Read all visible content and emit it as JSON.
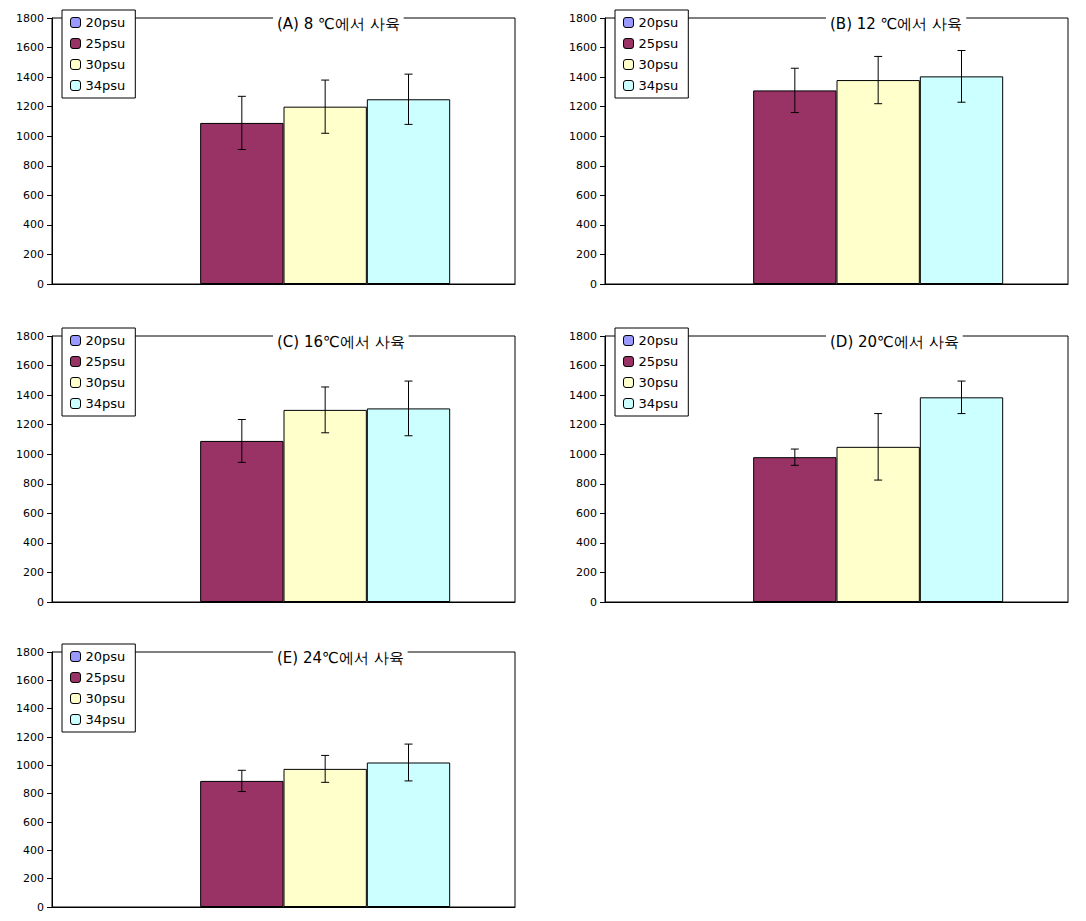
{
  "chart_data": [
    {
      "type": "bar",
      "title": "(A) 8 ℃에서 사육",
      "categories": [
        null
      ],
      "series": [
        {
          "name": "20psu",
          "color": "#9999ff",
          "values": [
            null
          ],
          "errors": [
            null
          ]
        },
        {
          "name": "25psu",
          "color": "#993366",
          "values": [
            1090
          ],
          "errors": [
            180
          ]
        },
        {
          "name": "30psu",
          "color": "#ffffcc",
          "values": [
            1200
          ],
          "errors": [
            180
          ]
        },
        {
          "name": "34psu",
          "color": "#ccffff",
          "values": [
            1250
          ],
          "errors": [
            170
          ]
        }
      ],
      "ylim": [
        0,
        1800
      ],
      "yticks": [
        0,
        200,
        400,
        600,
        800,
        1000,
        1200,
        1400,
        1600,
        1800
      ],
      "grid": false,
      "legend": "upper left",
      "tick_labels": "y"
    },
    {
      "type": "bar",
      "title": "(B) 12 ℃에서 사육",
      "categories": [
        null
      ],
      "series": [
        {
          "name": "20psu",
          "color": "#9999ff",
          "values": [
            null
          ],
          "errors": [
            null
          ]
        },
        {
          "name": "25psu",
          "color": "#993366",
          "values": [
            1310
          ],
          "errors": [
            150
          ]
        },
        {
          "name": "30psu",
          "color": "#ffffcc",
          "values": [
            1380
          ],
          "errors": [
            160
          ]
        },
        {
          "name": "34psu",
          "color": "#ccffff",
          "values": [
            1405
          ],
          "errors": [
            175
          ]
        }
      ],
      "ylim": [
        0,
        1800
      ],
      "yticks": [
        0,
        200,
        400,
        600,
        800,
        1000,
        1200,
        1400,
        1600,
        1800
      ],
      "grid": false,
      "legend": "upper left",
      "tick_labels": "y"
    },
    {
      "type": "bar",
      "title": "(C) 16℃에서 사육",
      "categories": [
        null
      ],
      "series": [
        {
          "name": "20psu",
          "color": "#9999ff",
          "values": [
            null
          ],
          "errors": [
            null
          ]
        },
        {
          "name": "25psu",
          "color": "#993366",
          "values": [
            1090
          ],
          "errors": [
            145
          ]
        },
        {
          "name": "30psu",
          "color": "#ffffcc",
          "values": [
            1300
          ],
          "errors": [
            155
          ]
        },
        {
          "name": "34psu",
          "color": "#ccffff",
          "values": [
            1310
          ],
          "errors": [
            185
          ]
        }
      ],
      "ylim": [
        0,
        1800
      ],
      "yticks": [
        0,
        200,
        400,
        600,
        800,
        1000,
        1200,
        1400,
        1600,
        1800
      ],
      "grid": false,
      "legend": "upper left",
      "tick_labels": "y"
    },
    {
      "type": "bar",
      "title": "(D) 20℃에서 사육",
      "categories": [
        null
      ],
      "series": [
        {
          "name": "20psu",
          "color": "#9999ff",
          "values": [
            null
          ],
          "errors": [
            null
          ]
        },
        {
          "name": "25psu",
          "color": "#993366",
          "values": [
            980
          ],
          "errors": [
            55
          ]
        },
        {
          "name": "30psu",
          "color": "#ffffcc",
          "values": [
            1050
          ],
          "errors": [
            225
          ]
        },
        {
          "name": "34psu",
          "color": "#ccffff",
          "values": [
            1385
          ],
          "errors": [
            110
          ]
        }
      ],
      "ylim": [
        0,
        1800
      ],
      "yticks": [
        0,
        200,
        400,
        600,
        800,
        1000,
        1200,
        1400,
        1600,
        1800
      ],
      "grid": false,
      "legend": "upper left",
      "tick_labels": "y"
    },
    {
      "type": "bar",
      "title": "(E) 24℃에서 사육",
      "categories": [
        null
      ],
      "series": [
        {
          "name": "20psu",
          "color": "#9999ff",
          "values": [
            null
          ],
          "errors": [
            null
          ]
        },
        {
          "name": "25psu",
          "color": "#993366",
          "values": [
            890
          ],
          "errors": [
            75
          ]
        },
        {
          "name": "30psu",
          "color": "#ffffcc",
          "values": [
            975
          ],
          "errors": [
            95
          ]
        },
        {
          "name": "34psu",
          "color": "#ccffff",
          "values": [
            1020
          ],
          "errors": [
            130
          ]
        }
      ],
      "ylim": [
        0,
        1800
      ],
      "yticks": [
        0,
        200,
        400,
        600,
        800,
        1000,
        1200,
        1400,
        1600,
        1800
      ],
      "grid": false,
      "legend": "upper left",
      "tick_labels": "y"
    }
  ]
}
